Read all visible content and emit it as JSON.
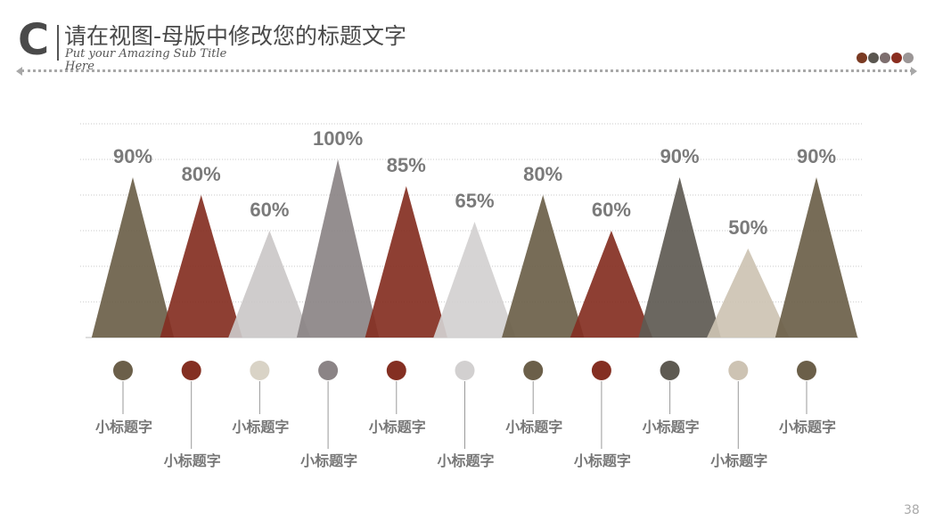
{
  "header": {
    "logo_letter": "C",
    "title": "请在视图-母版中修改您的标题文字",
    "subtitle": "Put your Amazing Sub Title Here"
  },
  "decor": {
    "dot_colors": [
      "#7a3a22",
      "#5a5650",
      "#7d6e6e",
      "#8a2d1f",
      "#9b9696"
    ]
  },
  "page_number": "38",
  "chart_data": {
    "type": "area",
    "shape": "triangle",
    "ylim": [
      0,
      100
    ],
    "grid": true,
    "categories": [
      "小标题字",
      "小标题字",
      "小标题字",
      "小标题字",
      "小标题字",
      "小标题字",
      "小标题字",
      "小标题字",
      "小标题字",
      "小标题字",
      "小标题字"
    ],
    "values": [
      90,
      80,
      60,
      100,
      85,
      65,
      80,
      60,
      90,
      50,
      90
    ],
    "data_labels": [
      "90%",
      "80%",
      "60%",
      "100%",
      "85%",
      "65%",
      "80%",
      "60%",
      "90%",
      "50%",
      "90%"
    ],
    "colors": [
      "#6b5f49",
      "#842f22",
      "#cbc8c8",
      "#8b8486",
      "#842f22",
      "#d2d0d0",
      "#6b5f49",
      "#842f22",
      "#5e5a52",
      "#cdc3b3",
      "#6b5f49"
    ],
    "marker_colors": [
      "#6b5f49",
      "#842f22",
      "#d9d3c6",
      "#8b8486",
      "#842f22",
      "#d2d0d0",
      "#6b5f49",
      "#842f22",
      "#5e5a52",
      "#cdc3b3",
      "#6b5f49"
    ]
  }
}
